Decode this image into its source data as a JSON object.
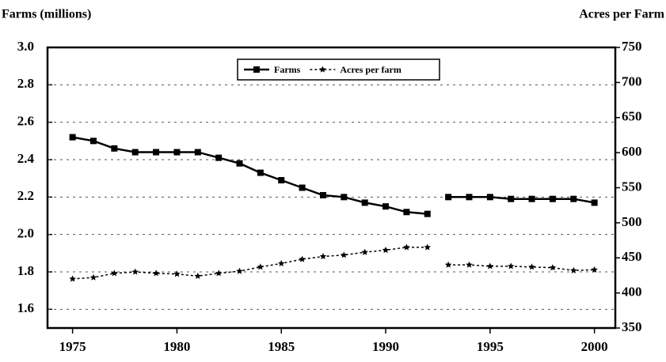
{
  "chart_data": {
    "type": "line",
    "y_label": "Farms (millions)",
    "y2_label": "Acres per Farm",
    "x": [
      1975,
      1976,
      1977,
      1978,
      1979,
      1980,
      1981,
      1982,
      1983,
      1984,
      1985,
      1986,
      1987,
      1988,
      1989,
      1990,
      1991,
      1992,
      null,
      1993,
      1994,
      1995,
      1996,
      1997,
      1998,
      1999,
      2000
    ],
    "series": [
      {
        "name": "Farms",
        "color": "#000000",
        "dash": "solid",
        "marker": "square",
        "values": [
          2.52,
          2.5,
          2.46,
          2.44,
          2.44,
          2.44,
          2.44,
          2.41,
          2.38,
          2.33,
          2.29,
          2.25,
          2.21,
          2.2,
          2.17,
          2.15,
          2.12,
          2.11,
          null,
          2.2,
          2.2,
          2.2,
          2.19,
          2.19,
          2.19,
          2.19,
          2.17
        ]
      },
      {
        "name": "Acres per farm",
        "color": "#000000",
        "dash": "dotted",
        "marker": "star",
        "axis": "y2",
        "values": [
          420,
          422,
          428,
          430,
          428,
          427,
          424,
          428,
          431,
          437,
          442,
          448,
          452,
          454,
          458,
          461,
          465,
          465,
          null,
          440,
          440,
          438,
          438,
          437,
          436,
          432,
          433
        ]
      }
    ],
    "xlim": [
      1973.8,
      2001
    ],
    "xticks": [
      1975,
      1980,
      1985,
      1990,
      1995,
      2000
    ],
    "ylim": [
      1.5,
      3.0
    ],
    "yticks": [
      1.6,
      1.8,
      {
        "value": 2,
        "label": "2.0"
      },
      2.2,
      2.4,
      2.6,
      2.8,
      {
        "value": 3,
        "label": "3.0"
      }
    ],
    "y2lim": [
      350,
      750
    ],
    "y2ticks": [
      350,
      400,
      450,
      500,
      550,
      600,
      650,
      700,
      750
    ],
    "grid": true,
    "legend": "top"
  }
}
